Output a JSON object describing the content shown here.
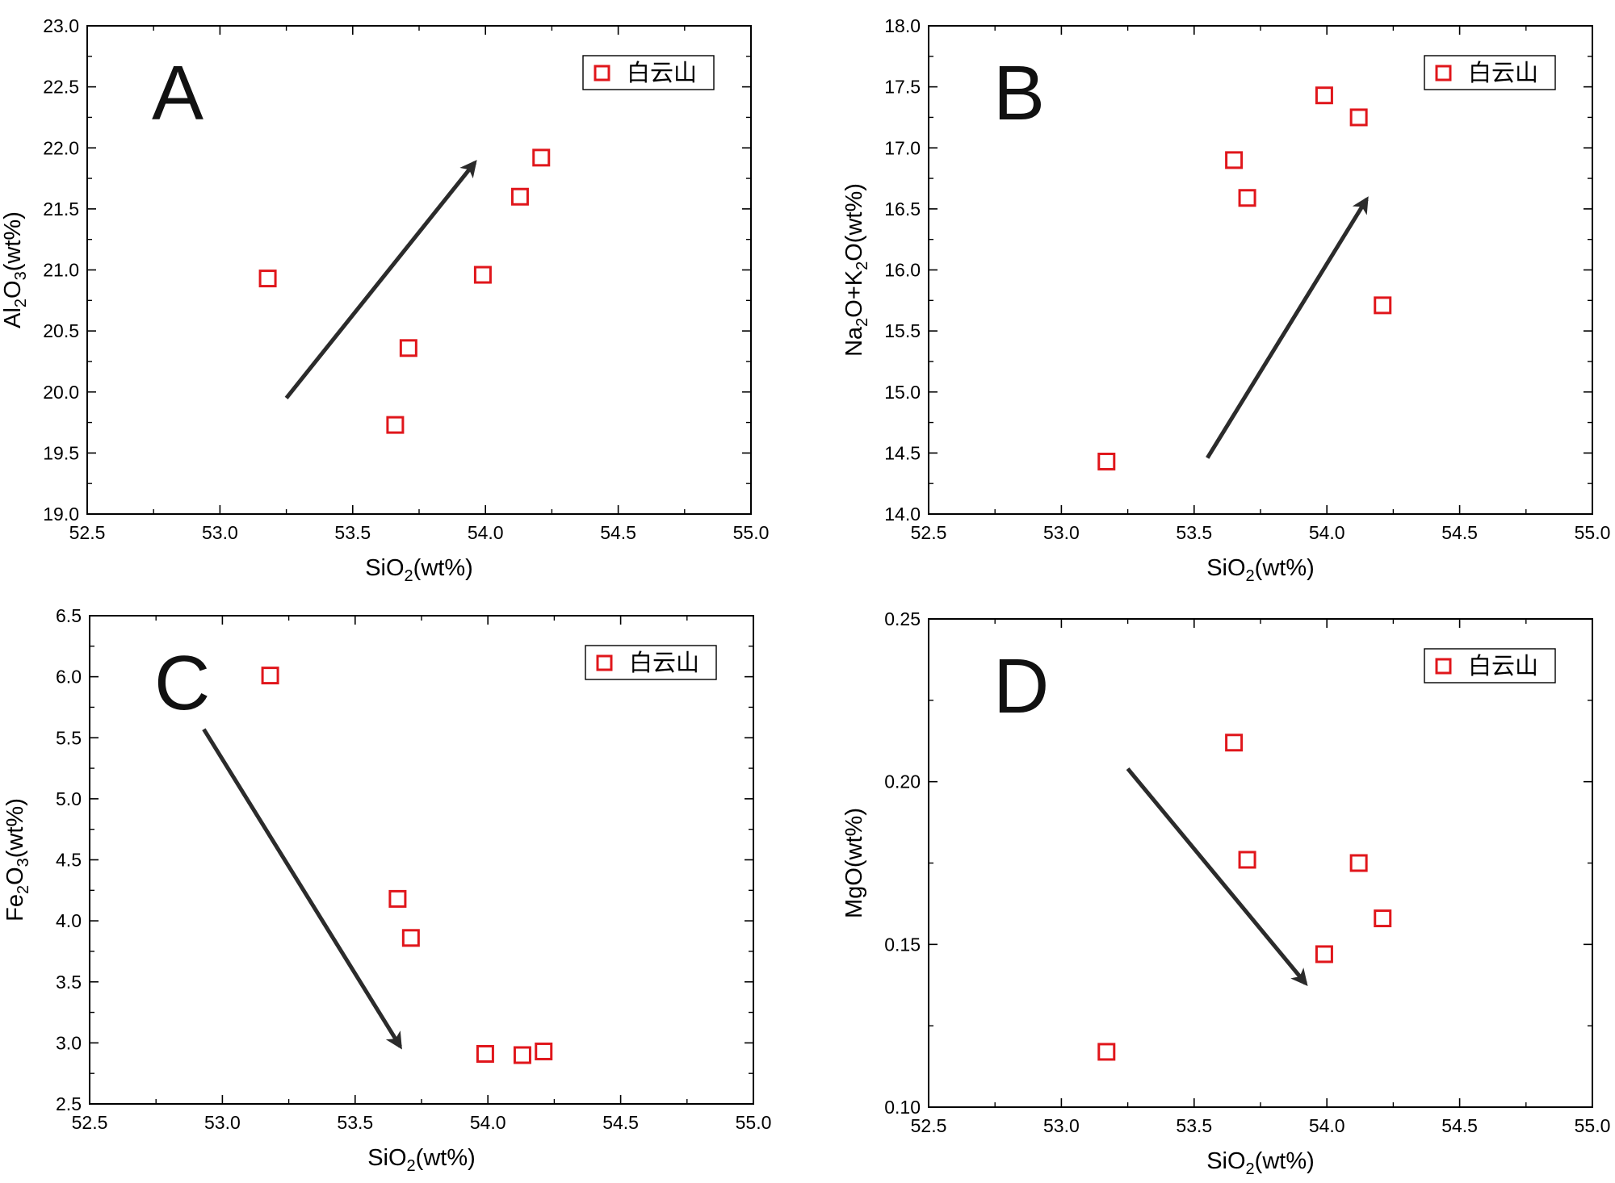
{
  "chart_data": [
    {
      "type": "scatter",
      "panel": "A",
      "xlabel": "SiO2(wt%)",
      "ylabel": "Al2O3(wt%)",
      "xlim": [
        52.5,
        55.0
      ],
      "ylim": [
        19.0,
        23.0
      ],
      "x_ticks": [
        "52.5",
        "53.0",
        "53.5",
        "54.0",
        "54.5",
        "55.0"
      ],
      "y_ticks": [
        "19.0",
        "19.5",
        "20.0",
        "20.5",
        "21.0",
        "21.5",
        "22.0",
        "22.5",
        "23.0"
      ],
      "legend": "白云山",
      "legend_position": "top-right",
      "series": [
        {
          "name": "白云山",
          "color": "#e0161b",
          "marker": "open-square",
          "points": [
            [
              53.18,
              20.93
            ],
            [
              53.66,
              19.73
            ],
            [
              53.71,
              20.36
            ],
            [
              53.99,
              20.96
            ],
            [
              54.13,
              21.6
            ],
            [
              54.21,
              21.92
            ]
          ]
        }
      ],
      "trend_arrow": {
        "from": [
          53.25,
          19.95
        ],
        "to": [
          53.96,
          21.88
        ]
      }
    },
    {
      "type": "scatter",
      "panel": "B",
      "xlabel": "SiO2(wt%)",
      "ylabel": "Na2O+K2O(wt%)",
      "xlim": [
        52.5,
        55.0
      ],
      "ylim": [
        14.0,
        18.0
      ],
      "x_ticks": [
        "52.5",
        "53.0",
        "53.5",
        "54.0",
        "54.5",
        "55.0"
      ],
      "y_ticks": [
        "14.0",
        "14.5",
        "15.0",
        "15.5",
        "16.0",
        "16.5",
        "17.0",
        "17.5",
        "18.0"
      ],
      "legend": "白云山",
      "legend_position": "top-right",
      "series": [
        {
          "name": "白云山",
          "color": "#e0161b",
          "marker": "open-square",
          "points": [
            [
              53.17,
              14.43
            ],
            [
              53.65,
              16.9
            ],
            [
              53.7,
              16.59
            ],
            [
              53.99,
              17.43
            ],
            [
              54.12,
              17.25
            ],
            [
              54.21,
              15.71
            ]
          ]
        }
      ],
      "trend_arrow": {
        "from": [
          53.55,
          14.46
        ],
        "to": [
          54.15,
          16.58
        ]
      }
    },
    {
      "type": "scatter",
      "panel": "C",
      "xlabel": "SiO2(wt%)",
      "ylabel": "Fe2O3(wt%)",
      "xlim": [
        52.5,
        55.0
      ],
      "ylim": [
        2.5,
        6.5
      ],
      "x_ticks": [
        "52.5",
        "53.0",
        "53.5",
        "54.0",
        "54.5",
        "55.0"
      ],
      "y_ticks": [
        "2.5",
        "3.0",
        "3.5",
        "4.0",
        "4.5",
        "5.0",
        "5.5",
        "6.0",
        "6.5"
      ],
      "legend": "白云山",
      "legend_position": "top-right",
      "series": [
        {
          "name": "白云山",
          "color": "#e0161b",
          "marker": "open-square",
          "points": [
            [
              53.18,
              6.01
            ],
            [
              53.66,
              4.18
            ],
            [
              53.71,
              3.86
            ],
            [
              53.99,
              2.91
            ],
            [
              54.13,
              2.9
            ],
            [
              54.21,
              2.93
            ]
          ]
        }
      ],
      "trend_arrow": {
        "from": [
          52.93,
          5.57
        ],
        "to": [
          53.67,
          2.97
        ]
      }
    },
    {
      "type": "scatter",
      "panel": "D",
      "xlabel": "SiO2(wt%)",
      "ylabel": "MgO(wt%)",
      "xlim": [
        52.5,
        55.0
      ],
      "ylim": [
        0.1,
        0.25
      ],
      "x_ticks": [
        "52.5",
        "53.0",
        "53.5",
        "54.0",
        "54.5",
        "55.0"
      ],
      "y_ticks": [
        "0.10",
        "0.15",
        "0.20",
        "0.25"
      ],
      "legend": "白云山",
      "legend_position": "top-right",
      "series": [
        {
          "name": "白云山",
          "color": "#e0161b",
          "marker": "open-square",
          "points": [
            [
              53.17,
              0.117
            ],
            [
              53.65,
              0.212
            ],
            [
              53.7,
              0.176
            ],
            [
              53.99,
              0.147
            ],
            [
              54.12,
              0.175
            ],
            [
              54.21,
              0.158
            ]
          ]
        }
      ],
      "trend_arrow": {
        "from": [
          53.25,
          0.204
        ],
        "to": [
          53.92,
          0.138
        ]
      }
    }
  ]
}
